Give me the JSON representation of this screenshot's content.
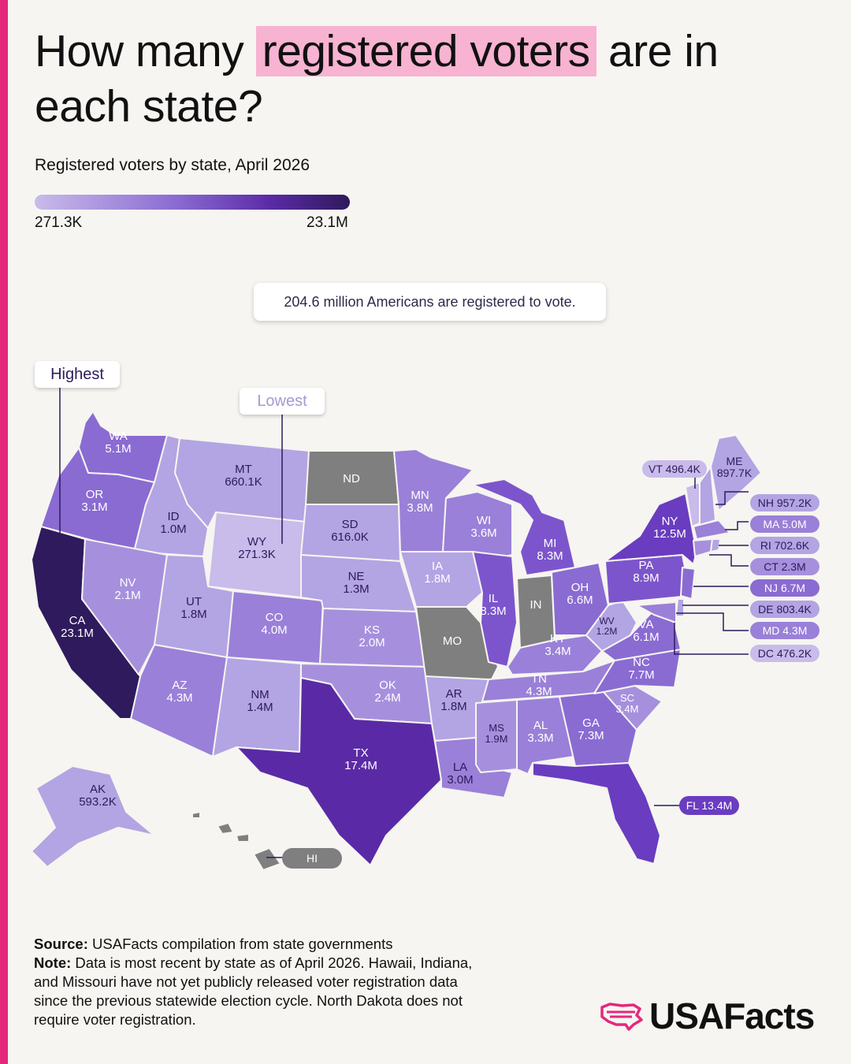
{
  "header": {
    "title_before": "How many",
    "title_highlight": "registered voters",
    "title_after": "are in each state?",
    "subtitle": "Registered voters by state, April 2026"
  },
  "legend": {
    "min_label": "271.3K",
    "max_label": "23.1M",
    "colors": [
      "#c9bbea",
      "#8a6bd2",
      "#5a2aa6",
      "#2e1a5c"
    ]
  },
  "total_callout": "204.6 million Americans are registered to vote.",
  "callouts": {
    "highest": "Highest",
    "lowest": "Lowest"
  },
  "map": {
    "no_data_color": "#7f7f7f",
    "states": {
      "WA": {
        "abbr": "WA",
        "value": "5.1M"
      },
      "OR": {
        "abbr": "OR",
        "value": "3.1M"
      },
      "CA": {
        "abbr": "CA",
        "value": "23.1M"
      },
      "ID": {
        "abbr": "ID",
        "value": "1.0M"
      },
      "NV": {
        "abbr": "NV",
        "value": "2.1M"
      },
      "MT": {
        "abbr": "MT",
        "value": "660.1K"
      },
      "WY": {
        "abbr": "WY",
        "value": "271.3K"
      },
      "UT": {
        "abbr": "UT",
        "value": "1.8M"
      },
      "AZ": {
        "abbr": "AZ",
        "value": "4.3M"
      },
      "CO": {
        "abbr": "CO",
        "value": "4.0M"
      },
      "NM": {
        "abbr": "NM",
        "value": "1.4M"
      },
      "ND": {
        "abbr": "ND",
        "value": ""
      },
      "SD": {
        "abbr": "SD",
        "value": "616.0K"
      },
      "NE": {
        "abbr": "NE",
        "value": "1.3M"
      },
      "KS": {
        "abbr": "KS",
        "value": "2.0M"
      },
      "OK": {
        "abbr": "OK",
        "value": "2.4M"
      },
      "TX": {
        "abbr": "TX",
        "value": "17.4M"
      },
      "MN": {
        "abbr": "MN",
        "value": "3.8M"
      },
      "IA": {
        "abbr": "IA",
        "value": "1.8M"
      },
      "MO": {
        "abbr": "MO",
        "value": ""
      },
      "AR": {
        "abbr": "AR",
        "value": "1.8M"
      },
      "LA": {
        "abbr": "LA",
        "value": "3.0M"
      },
      "WI": {
        "abbr": "WI",
        "value": "3.6M"
      },
      "IL": {
        "abbr": "IL",
        "value": "8.3M"
      },
      "MI": {
        "abbr": "MI",
        "value": "8.3M"
      },
      "IN": {
        "abbr": "IN",
        "value": ""
      },
      "OH": {
        "abbr": "OH",
        "value": "6.6M"
      },
      "KY": {
        "abbr": "KY",
        "value": "3.4M"
      },
      "TN": {
        "abbr": "TN",
        "value": "4.3M"
      },
      "MS": {
        "abbr": "MS",
        "value": "1.9M"
      },
      "AL": {
        "abbr": "AL",
        "value": "3.3M"
      },
      "GA": {
        "abbr": "GA",
        "value": "7.3M"
      },
      "FL": {
        "abbr": "FL",
        "value": "13.4M"
      },
      "SC": {
        "abbr": "SC",
        "value": "3.4M"
      },
      "NC": {
        "abbr": "NC",
        "value": "7.7M"
      },
      "VA": {
        "abbr": "VA",
        "value": "6.1M"
      },
      "WV": {
        "abbr": "WV",
        "value": "1.2M"
      },
      "PA": {
        "abbr": "PA",
        "value": "8.9M"
      },
      "NY": {
        "abbr": "NY",
        "value": "12.5M"
      },
      "VT": {
        "abbr": "VT",
        "value": "496.4K"
      },
      "ME": {
        "abbr": "ME",
        "value": "897.7K"
      },
      "NH": {
        "abbr": "NH",
        "value": "957.2K"
      },
      "MA": {
        "abbr": "MA",
        "value": "5.0M"
      },
      "RI": {
        "abbr": "RI",
        "value": "702.6K"
      },
      "CT": {
        "abbr": "CT",
        "value": "2.3M"
      },
      "NJ": {
        "abbr": "NJ",
        "value": "6.7M"
      },
      "DE": {
        "abbr": "DE",
        "value": "803.4K"
      },
      "MD": {
        "abbr": "MD",
        "value": "4.3M"
      },
      "DC": {
        "abbr": "DC",
        "value": "476.2K"
      },
      "AK": {
        "abbr": "AK",
        "value": "593.2K"
      },
      "HI": {
        "abbr": "HI",
        "value": ""
      }
    }
  },
  "footer": {
    "source_label": "Source:",
    "source_text": "USAFacts compilation from state governments",
    "note_label": "Note:",
    "note_text": "Data is most recent by state as of April 2026. Hawaii, Indiana, and Missouri have not yet publicly released voter registration data since the previous statewide election cycle. North Dakota does not require voter registration."
  },
  "logo": {
    "text": "USAFacts",
    "color": "#e5287d"
  }
}
